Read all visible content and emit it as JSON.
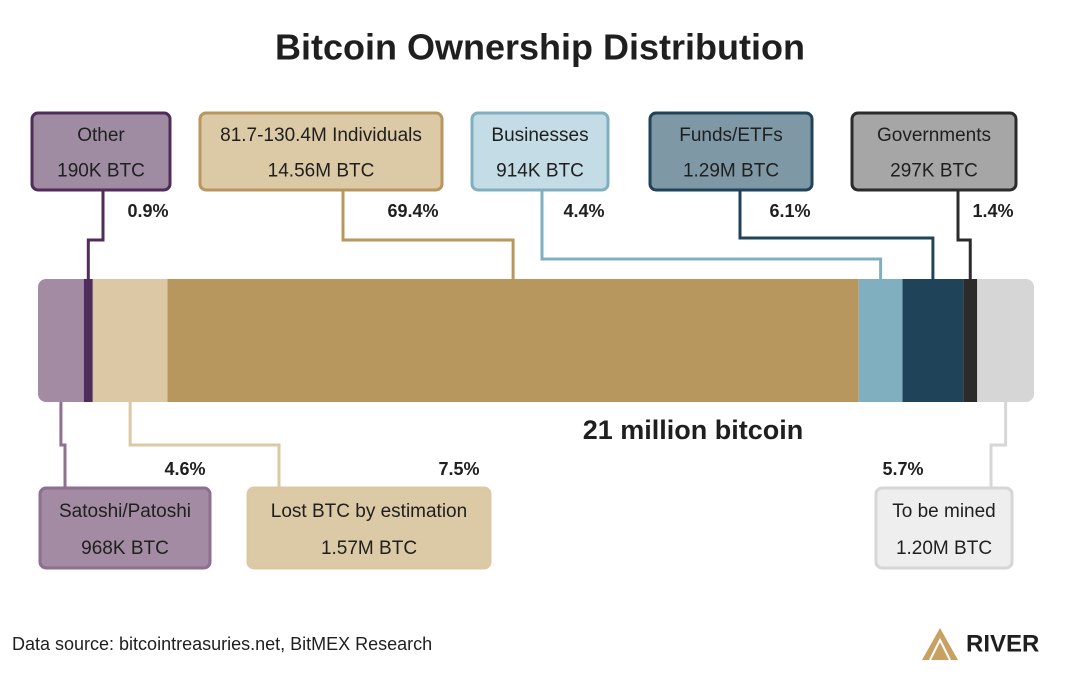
{
  "chart_data": {
    "type": "stacked-bar",
    "title": "Bitcoin Ownership Distribution",
    "annotation": "21 million bitcoin",
    "xlim": [
      0,
      100
    ],
    "series": [
      {
        "name": "Satoshi/Patoshi",
        "color": "#a38ba3",
        "values": [
          4.6
        ],
        "value_labels": [
          "4.6%"
        ],
        "amount": 968000,
        "amount_label": "968K BTC"
      },
      {
        "name": "Other",
        "color": "#4f2c5a",
        "values": [
          0.9
        ],
        "value_labels": [
          "0.9%"
        ],
        "amount": 190000,
        "amount_label": "190K BTC"
      },
      {
        "name": "Lost BTC by estimation",
        "color": "#dcc8a4",
        "values": [
          7.5
        ],
        "value_labels": [
          "7.5%"
        ],
        "amount": 1570000,
        "amount_label": "1.57M BTC"
      },
      {
        "name": "81.7-130.4M Individuals",
        "color": "#b8975f",
        "values": [
          69.4
        ],
        "value_labels": [
          "69.4%"
        ],
        "amount": 14560000,
        "amount_label": "14.56M BTC"
      },
      {
        "name": "Businesses",
        "color": "#80b0c0",
        "values": [
          4.4
        ],
        "value_labels": [
          "4.4%"
        ],
        "amount": 914000,
        "amount_label": "914K BTC"
      },
      {
        "name": "Funds/ETFs",
        "color": "#1f4459",
        "values": [
          6.1
        ],
        "value_labels": [
          "6.1%"
        ],
        "amount": 1290000,
        "amount_label": "1.29M BTC"
      },
      {
        "name": "Governments",
        "color": "#2b2b2b",
        "values": [
          1.4
        ],
        "value_labels": [
          "1.4%"
        ],
        "amount": 297000,
        "amount_label": "297K BTC"
      },
      {
        "name": "To be mined",
        "color": "#d6d6d6",
        "values": [
          5.7
        ],
        "value_labels": [
          "5.7%"
        ],
        "amount": 1200000,
        "amount_label": "1.20M BTC"
      }
    ]
  },
  "footer": {
    "source": "Data source: bitcointreasuries.net, BitMEX Research",
    "brand": "RIVER"
  }
}
